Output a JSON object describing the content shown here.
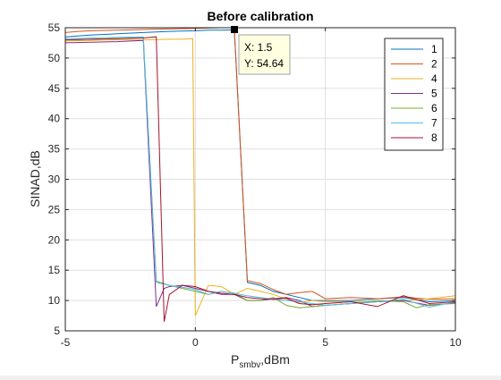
{
  "chart_data": {
    "type": "line",
    "title": "Before calibration",
    "xlabel": {
      "main": "P",
      "subscript": "smbv",
      "suffix": ",dBm"
    },
    "ylabel": "SINAD,dB",
    "xlim": [
      -5,
      10
    ],
    "ylim": [
      5,
      55
    ],
    "xticks": [
      -5,
      0,
      5,
      10
    ],
    "yticks": [
      5,
      10,
      15,
      20,
      25,
      30,
      35,
      40,
      45,
      50,
      55
    ],
    "grid": true,
    "legend_position": "top-right",
    "datatip": {
      "x": 1.5,
      "y": 54.64,
      "x_text": "X: 1.5",
      "y_text": "Y: 54.64"
    },
    "series": [
      {
        "name": "1",
        "color": "#0072BD",
        "x": [
          -5,
          -4,
          -3,
          -2,
          -1.5,
          -1,
          0,
          0.5,
          1,
          1.5,
          2,
          2.5,
          3,
          3.5,
          4,
          4.5,
          5,
          6,
          7,
          8,
          8.5,
          9,
          10
        ],
        "y": [
          53.5,
          53.8,
          54,
          54.2,
          54.3,
          54.4,
          54.5,
          54.6,
          54.6,
          54.64,
          13,
          12.5,
          11.5,
          11,
          10.5,
          10,
          10,
          10,
          10.3,
          10.5,
          10.2,
          9.8,
          10
        ]
      },
      {
        "name": "2",
        "color": "#D95319",
        "x": [
          -5,
          -4.5,
          -4,
          -3,
          -2,
          -1,
          0,
          1,
          1.5,
          2,
          2.5,
          3,
          3.5,
          4,
          4.5,
          5,
          6,
          7,
          8,
          9,
          10
        ],
        "y": [
          54.2,
          54.4,
          54.5,
          54.6,
          54.7,
          54.8,
          54.9,
          55,
          55,
          13.3,
          12.8,
          11.8,
          11,
          11.3,
          11.5,
          10.3,
          10.5,
          10.3,
          10.6,
          10.2,
          10.3
        ]
      },
      {
        "name": "4",
        "color": "#EDB120",
        "x": [
          -5,
          -4,
          -3,
          -2,
          -1,
          -0.5,
          -0.1,
          0,
          0.3,
          0.5,
          1,
          1.5,
          2,
          2.5,
          3,
          3.5,
          4,
          4.5,
          5,
          6,
          7,
          8,
          9,
          10
        ],
        "y": [
          52.8,
          52.9,
          53,
          53,
          53.1,
          53.1,
          53.2,
          7.5,
          10.5,
          12.5,
          12.3,
          11,
          12,
          11.5,
          11,
          10.2,
          9.7,
          10,
          9.8,
          9.8,
          9.8,
          10,
          10.3,
          10.8
        ]
      },
      {
        "name": "5",
        "color": "#7E2F8E",
        "x": [
          -5,
          -4,
          -3,
          -2.5,
          -2,
          -1.5,
          -1.2,
          -1,
          -0.5,
          0,
          0.5,
          1,
          1.5,
          2,
          2.5,
          3,
          3.5,
          4,
          4.5,
          5,
          6,
          7,
          8,
          9,
          10
        ],
        "y": [
          52.5,
          52.6,
          52.7,
          52.8,
          52.9,
          9,
          12,
          12.3,
          12.5,
          12,
          11.5,
          11,
          11,
          10,
          10,
          10.3,
          10.5,
          10,
          9,
          9.2,
          9.5,
          9.8,
          10,
          9.2,
          9.6
        ]
      },
      {
        "name": "6",
        "color": "#77AC30",
        "x": [
          -5,
          -4,
          -3,
          -2.5,
          -2,
          -1.5,
          -1,
          -0.5,
          0,
          0.5,
          1,
          1.5,
          2,
          2.5,
          3,
          3.5,
          4,
          4.5,
          5,
          6,
          7,
          8,
          8.5,
          9,
          10
        ],
        "y": [
          53,
          53.1,
          53.2,
          53.3,
          53.3,
          13.2,
          12.5,
          12,
          11.5,
          11,
          11.5,
          11.2,
          10,
          10,
          10.5,
          9.2,
          8.8,
          9,
          9.2,
          9.5,
          10,
          9.8,
          8.8,
          9.3,
          9.5
        ]
      },
      {
        "name": "7",
        "color": "#4DBEEE",
        "x": [
          -5,
          -4,
          -3,
          -2,
          -1.5,
          -1,
          -0.5,
          0,
          0.5,
          1,
          1.5,
          2,
          2.5,
          3,
          3.5,
          4,
          4.5,
          5,
          6,
          7,
          8,
          9,
          10
        ],
        "y": [
          53.2,
          53.3,
          53.4,
          53.5,
          13,
          12.5,
          12.2,
          11.8,
          11,
          11.5,
          11.2,
          10.8,
          10.5,
          10.2,
          10,
          9.8,
          9.5,
          9.2,
          9.5,
          9.8,
          10.2,
          8.9,
          9.8
        ]
      },
      {
        "name": "8",
        "color": "#A2142F",
        "x": [
          -5,
          -4,
          -3,
          -2,
          -1.5,
          -1.2,
          -1,
          -0.5,
          0,
          0.5,
          1,
          1.5,
          2,
          2.5,
          3,
          3.5,
          4,
          4.5,
          5,
          6,
          7,
          8,
          9,
          10
        ],
        "y": [
          53,
          53.1,
          53.2,
          53.3,
          53.5,
          6.5,
          11,
          12.5,
          12.3,
          11.5,
          11.2,
          11,
          10.5,
          10.3,
          10.2,
          10.4,
          9.5,
          9.3,
          9.5,
          9.8,
          9,
          10.8,
          9.5,
          9.8
        ]
      }
    ]
  }
}
